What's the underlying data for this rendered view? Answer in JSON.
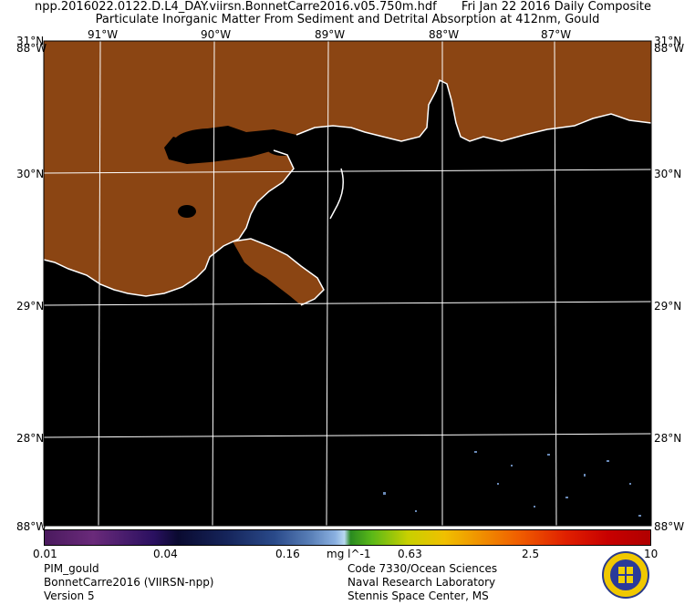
{
  "header": {
    "filename": "npp.2016022.0122.D.L4_DAY.viirsn.BonnetCarre2016.v05.750m.hdf",
    "date": "Fri Jan 22 2016 Daily Composite",
    "product": "Particulate Inorganic Matter From Sediment and Detrital Absorption at 412nm, Gould"
  },
  "map": {
    "lon_top_labels": [
      "91°W",
      "90°W",
      "89°W",
      "88°W",
      "87°W"
    ],
    "lat_left_labels": [
      "31°N",
      "30°N",
      "29°N",
      "28°N"
    ],
    "lat_right_labels": [
      "31°N",
      "30°N",
      "29°N",
      "28°N"
    ],
    "corner_top_left": "88°W",
    "corner_top_right": "88°W",
    "corner_bottom_left": "88°W",
    "corner_bottom_right": "88°W",
    "colors": {
      "land": "#8b4513",
      "water": "#000000",
      "coast": "#ffffff",
      "grid": "#ffffff"
    }
  },
  "colorbar": {
    "ticks": [
      "0.01",
      "0.04",
      "0.16",
      "0.63",
      "2.5",
      "10"
    ],
    "units": "mg l^-1"
  },
  "footer": {
    "left": [
      "PIM_gould",
      "BonnetCarre2016 (VIIRSN-npp)",
      "Version 5"
    ],
    "right": [
      "Code 7330/Ocean Sciences",
      "Naval Research Laboratory",
      "Stennis Space Center, MS"
    ]
  }
}
